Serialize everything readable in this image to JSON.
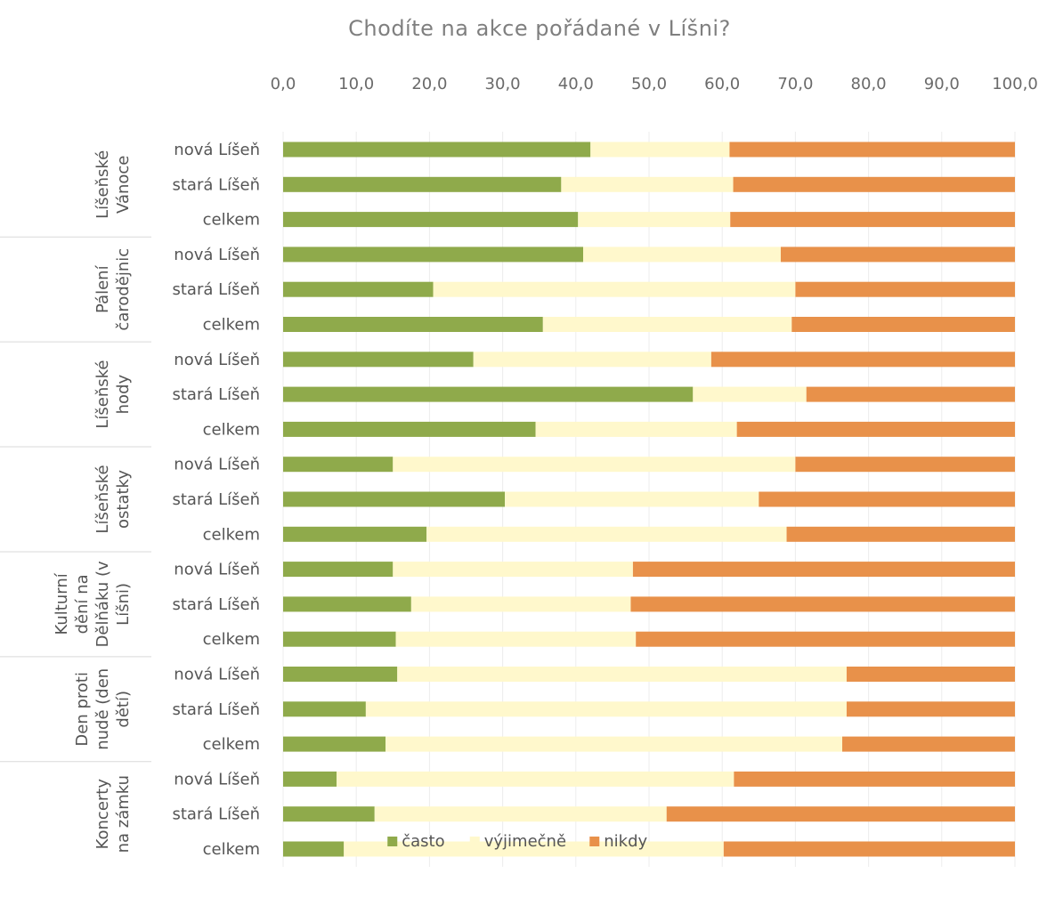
{
  "chart_data": {
    "type": "bar",
    "orientation": "horizontal",
    "stacked": true,
    "title": "Chodíte na akce pořádané v Líšni?",
    "xlim": [
      0,
      100
    ],
    "x_ticks": [
      "0,0",
      "10,0",
      "20,0",
      "30,0",
      "40,0",
      "50,0",
      "60,0",
      "70,0",
      "80,0",
      "90,0",
      "100,0"
    ],
    "x_axis_position": "top",
    "grid": true,
    "legend_position": "bottom",
    "colors": {
      "často": "#8faa4b",
      "výjimečně": "#fff8cc",
      "nikdy": "#e8914a"
    },
    "groups": [
      {
        "label": [
          "Líšeňské",
          "Vánoce"
        ],
        "rows": [
          {
            "category": "nová Líšeň",
            "values": [
              42.0,
              19.0,
              39.0
            ]
          },
          {
            "category": "stará Líšeň",
            "values": [
              38.0,
              23.5,
              38.5
            ]
          },
          {
            "category": "celkem",
            "values": [
              40.3,
              20.8,
              38.9
            ]
          }
        ]
      },
      {
        "label": [
          "Pálení",
          "čarodějnic"
        ],
        "rows": [
          {
            "category": "nová Líšeň",
            "values": [
              41.0,
              27.0,
              32.0
            ]
          },
          {
            "category": "stará Líšeň",
            "values": [
              20.5,
              49.5,
              30.0
            ]
          },
          {
            "category": "celkem",
            "values": [
              35.5,
              34.0,
              30.5
            ]
          }
        ]
      },
      {
        "label": [
          "Líšeňské",
          "hody"
        ],
        "rows": [
          {
            "category": "nová Líšeň",
            "values": [
              26.0,
              32.5,
              41.5
            ]
          },
          {
            "category": "stará Líšeň",
            "values": [
              56.0,
              15.5,
              28.5
            ]
          },
          {
            "category": "celkem",
            "values": [
              34.5,
              27.5,
              38.0
            ]
          }
        ]
      },
      {
        "label": [
          "Líšeňské",
          "ostatky"
        ],
        "rows": [
          {
            "category": "nová Líšeň",
            "values": [
              15.0,
              55.0,
              30.0
            ]
          },
          {
            "category": "stará Líšeň",
            "values": [
              30.3,
              34.7,
              35.0
            ]
          },
          {
            "category": "celkem",
            "values": [
              19.6,
              49.2,
              31.2
            ]
          }
        ]
      },
      {
        "label": [
          "Kulturní",
          "dění na",
          "Dělňáku (v",
          "Líšni)"
        ],
        "rows": [
          {
            "category": "nová Líšeň",
            "values": [
              15.0,
              32.8,
              52.2
            ]
          },
          {
            "category": "stará Líšeň",
            "values": [
              17.5,
              30.0,
              52.5
            ]
          },
          {
            "category": "celkem",
            "values": [
              15.4,
              32.8,
              51.8
            ]
          }
        ]
      },
      {
        "label": [
          "Den proti",
          "nudě (den",
          "dětí)"
        ],
        "rows": [
          {
            "category": "nová Líšeň",
            "values": [
              15.6,
              61.4,
              23.0
            ]
          },
          {
            "category": "stará Líšeň",
            "values": [
              11.3,
              65.7,
              23.0
            ]
          },
          {
            "category": "celkem",
            "values": [
              14.0,
              62.4,
              23.6
            ]
          }
        ]
      },
      {
        "label": [
          "Koncerty",
          "na zámku"
        ],
        "rows": [
          {
            "category": "nová Líšeň",
            "values": [
              7.3,
              54.3,
              38.4
            ]
          },
          {
            "category": "stará Líšeň",
            "values": [
              12.5,
              39.9,
              47.6
            ]
          },
          {
            "category": "celkem",
            "values": [
              8.3,
              51.9,
              39.8
            ]
          }
        ]
      }
    ],
    "series": [
      {
        "name": "často"
      },
      {
        "name": "výjimečně"
      },
      {
        "name": "nikdy"
      }
    ]
  }
}
